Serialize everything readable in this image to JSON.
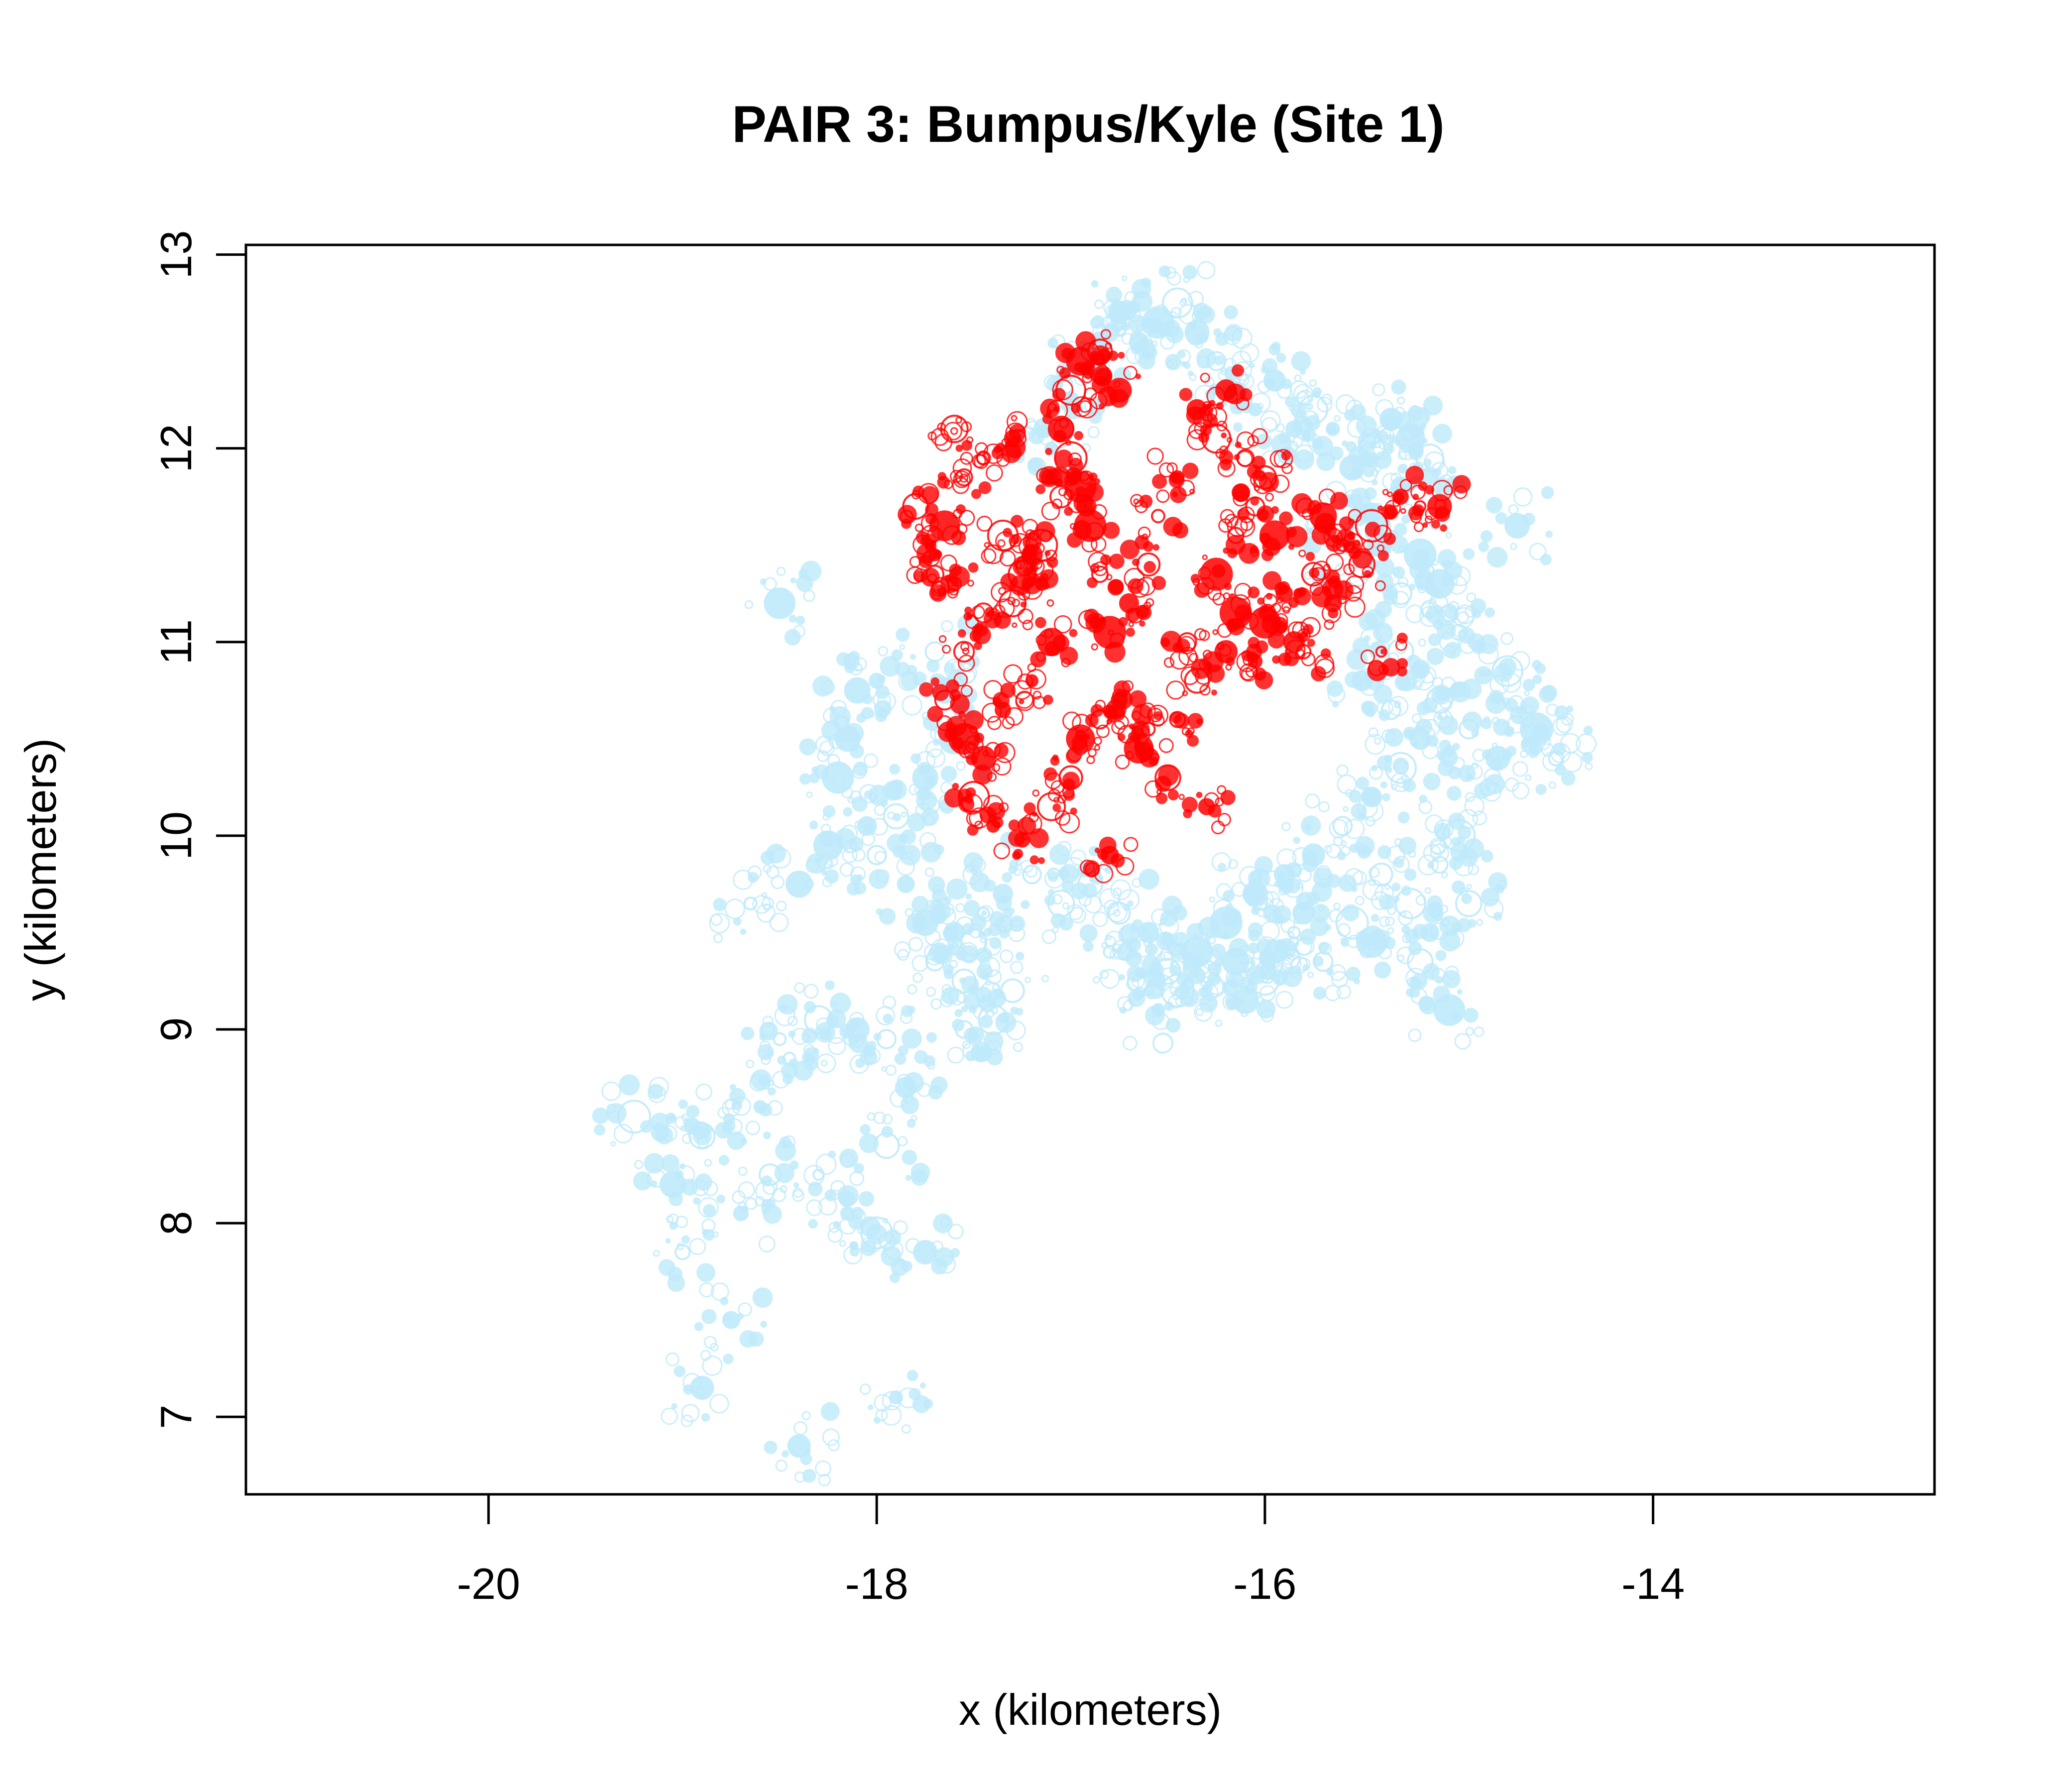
{
  "chart_data": {
    "type": "scatter",
    "title": "PAIR 3: Bumpus/Kyle (Site 1)",
    "xlabel": "x (kilometers)",
    "ylabel": "y (kilometers)",
    "xlim": [
      -21.25,
      -12.55
    ],
    "ylim": [
      6.6,
      13.05
    ],
    "xticks": [
      -20,
      -18,
      -16,
      -14
    ],
    "yticks": [
      7,
      8,
      9,
      10,
      11,
      12,
      13
    ],
    "grid": false,
    "legend": "none",
    "colors": {
      "blue": "#BFEAFB",
      "red": "#FF0000"
    },
    "series": [
      {
        "color": "blue",
        "points": [
          [
            -17.75,
            9.55
          ],
          [
            -17.6,
            9.5
          ],
          [
            -17.5,
            9.45
          ],
          [
            -17.7,
            9.35
          ],
          [
            -17.55,
            9.25
          ],
          [
            -17.45,
            9.6
          ],
          [
            -17.35,
            9.7
          ],
          [
            -17.2,
            9.8
          ],
          [
            -17.05,
            9.65
          ],
          [
            -16.9,
            9.75
          ],
          [
            -16.75,
            9.6
          ],
          [
            -16.6,
            9.5
          ],
          [
            -16.5,
            9.3
          ],
          [
            -16.35,
            9.4
          ],
          [
            -16.2,
            9.55
          ],
          [
            -16.05,
            9.7
          ],
          [
            -15.9,
            9.8
          ],
          [
            -15.75,
            9.9
          ],
          [
            -15.6,
            10.05
          ],
          [
            -15.45,
            10.2
          ],
          [
            -15.3,
            10.35
          ],
          [
            -15.2,
            10.5
          ],
          [
            -15.35,
            10.65
          ],
          [
            -15.5,
            10.8
          ],
          [
            -15.3,
            10.95
          ],
          [
            -15.1,
            10.7
          ],
          [
            -14.95,
            10.55
          ],
          [
            -14.8,
            10.4
          ],
          [
            -14.65,
            10.6
          ],
          [
            -14.5,
            10.4
          ],
          [
            -14.85,
            10.25
          ],
          [
            -15.0,
            10.0
          ],
          [
            -15.1,
            9.85
          ],
          [
            -15.25,
            9.65
          ],
          [
            -15.4,
            9.8
          ],
          [
            -15.55,
            9.55
          ],
          [
            -15.7,
            9.35
          ],
          [
            -15.85,
            9.5
          ],
          [
            -16.0,
            9.25
          ],
          [
            -16.15,
            9.35
          ],
          [
            -17.85,
            9.75
          ],
          [
            -18.0,
            9.9
          ],
          [
            -17.9,
            10.1
          ],
          [
            -17.75,
            10.3
          ],
          [
            -17.6,
            10.5
          ],
          [
            -17.65,
            10.75
          ],
          [
            -17.7,
            10.95
          ],
          [
            -18.1,
            10.75
          ],
          [
            -18.15,
            10.5
          ],
          [
            -18.2,
            10.3
          ],
          [
            -18.05,
            10.05
          ],
          [
            -18.25,
            9.95
          ],
          [
            -18.4,
            9.75
          ],
          [
            -17.4,
            9.05
          ],
          [
            -17.3,
            9.2
          ],
          [
            -17.55,
            9.0
          ],
          [
            -16.8,
            9.4
          ],
          [
            -16.65,
            9.25
          ],
          [
            -16.55,
            9.1
          ],
          [
            -16.45,
            9.2
          ],
          [
            -16.3,
            9.3
          ],
          [
            -16.1,
            9.15
          ],
          [
            -15.95,
            9.4
          ],
          [
            -15.8,
            9.6
          ],
          [
            -18.5,
            8.95
          ],
          [
            -18.45,
            8.85
          ],
          [
            -18.6,
            8.6
          ],
          [
            -18.3,
            8.25
          ],
          [
            -18.15,
            8.05
          ],
          [
            -18.0,
            7.95
          ],
          [
            -18.9,
            8.45
          ],
          [
            -19.05,
            8.2
          ],
          [
            -19.25,
            8.55
          ],
          [
            -18.95,
            8.5
          ],
          [
            -19.0,
            7.85
          ],
          [
            -18.75,
            7.5
          ],
          [
            -18.9,
            7.15
          ],
          [
            -17.9,
            7.1
          ],
          [
            -18.4,
            6.85
          ],
          [
            -17.75,
            7.85
          ],
          [
            -18.7,
            8.05
          ],
          [
            -18.55,
            8.25
          ],
          [
            -17.95,
            8.4
          ],
          [
            -17.85,
            8.7
          ],
          [
            -18.65,
            9.65
          ],
          [
            -18.3,
            9.05
          ],
          [
            -18.1,
            9.0
          ],
          [
            -17.95,
            8.95
          ],
          [
            -15.15,
            11.95
          ],
          [
            -15.25,
            12.05
          ],
          [
            -15.35,
            12.15
          ],
          [
            -15.45,
            12.0
          ],
          [
            -15.55,
            11.9
          ],
          [
            -15.65,
            12.1
          ],
          [
            -15.75,
            12.2
          ],
          [
            -15.3,
            11.8
          ],
          [
            -15.4,
            11.6
          ],
          [
            -15.2,
            11.45
          ],
          [
            -15.1,
            11.3
          ],
          [
            -15.05,
            11.15
          ],
          [
            -15.0,
            11.05
          ],
          [
            -15.3,
            11.25
          ],
          [
            -15.45,
            11.4
          ],
          [
            -15.6,
            11.5
          ],
          [
            -16.65,
            12.55
          ],
          [
            -16.55,
            12.65
          ],
          [
            -16.45,
            12.75
          ],
          [
            -16.35,
            12.6
          ],
          [
            -16.75,
            12.7
          ],
          [
            -16.85,
            12.55
          ],
          [
            -16.95,
            12.45
          ],
          [
            -16.25,
            12.45
          ],
          [
            -16.15,
            12.3
          ],
          [
            -16.05,
            12.2
          ],
          [
            -15.95,
            12.35
          ],
          [
            -15.85,
            12.1
          ],
          [
            -18.5,
            11.2
          ],
          [
            -18.0,
            10.8
          ],
          [
            -17.1,
            12.0
          ],
          [
            -17.0,
            12.25
          ],
          [
            -14.7,
            11.6
          ],
          [
            -14.75,
            10.85
          ],
          [
            -14.6,
            10.55
          ],
          [
            -15.15,
            9.5
          ],
          [
            -15.05,
            9.1
          ],
          [
            -14.95,
            9.65
          ],
          [
            -15.2,
            9.35
          ],
          [
            -15.45,
            9.45
          ]
        ]
      },
      {
        "color": "red",
        "points": [
          [
            -17.2,
            11.45
          ],
          [
            -17.25,
            11.35
          ],
          [
            -17.15,
            11.5
          ],
          [
            -17.3,
            11.2
          ],
          [
            -17.1,
            11.0
          ],
          [
            -17.2,
            10.8
          ],
          [
            -17.35,
            10.65
          ],
          [
            -17.45,
            10.4
          ],
          [
            -17.5,
            10.2
          ],
          [
            -17.4,
            10.05
          ],
          [
            -17.25,
            9.98
          ],
          [
            -17.1,
            10.15
          ],
          [
            -17.0,
            10.3
          ],
          [
            -16.95,
            10.5
          ],
          [
            -16.85,
            10.6
          ],
          [
            -16.75,
            10.7
          ],
          [
            -16.6,
            10.55
          ],
          [
            -16.45,
            10.6
          ],
          [
            -16.35,
            10.8
          ],
          [
            -16.2,
            10.95
          ],
          [
            -16.0,
            11.1
          ],
          [
            -15.9,
            11.25
          ],
          [
            -15.75,
            11.35
          ],
          [
            -15.6,
            11.5
          ],
          [
            -15.45,
            11.6
          ],
          [
            -15.3,
            11.75
          ],
          [
            -15.2,
            11.7
          ],
          [
            -15.5,
            11.4
          ],
          [
            -15.65,
            11.2
          ],
          [
            -15.85,
            11.0
          ],
          [
            -16.05,
            10.9
          ],
          [
            -16.15,
            11.15
          ],
          [
            -16.25,
            11.35
          ],
          [
            -16.15,
            11.55
          ],
          [
            -16.05,
            11.7
          ],
          [
            -16.0,
            11.85
          ],
          [
            -16.1,
            11.95
          ],
          [
            -16.25,
            12.05
          ],
          [
            -16.35,
            12.2
          ],
          [
            -16.2,
            12.3
          ],
          [
            -16.45,
            11.85
          ],
          [
            -16.55,
            11.65
          ],
          [
            -16.6,
            11.4
          ],
          [
            -16.7,
            11.2
          ],
          [
            -16.85,
            11.35
          ],
          [
            -16.9,
            11.6
          ],
          [
            -16.95,
            11.8
          ],
          [
            -17.0,
            11.95
          ],
          [
            -17.05,
            12.1
          ],
          [
            -17.0,
            12.3
          ],
          [
            -16.95,
            12.45
          ],
          [
            -16.85,
            12.5
          ],
          [
            -16.75,
            12.3
          ],
          [
            -17.6,
            12.1
          ],
          [
            -17.45,
            11.95
          ],
          [
            -17.3,
            12.05
          ],
          [
            -17.55,
            11.85
          ],
          [
            -17.65,
            11.6
          ],
          [
            -17.7,
            11.45
          ],
          [
            -17.6,
            11.3
          ],
          [
            -17.45,
            11.15
          ],
          [
            -17.55,
            10.95
          ],
          [
            -17.65,
            10.7
          ],
          [
            -17.55,
            10.5
          ],
          [
            -16.3,
            10.15
          ],
          [
            -16.5,
            10.3
          ],
          [
            -16.65,
            10.45
          ],
          [
            -16.8,
            9.9
          ],
          [
            -15.4,
            10.95
          ],
          [
            -15.1,
            11.7
          ],
          [
            -15.8,
            10.95
          ],
          [
            -15.95,
            11.55
          ],
          [
            -17.8,
            11.7
          ],
          [
            -17.7,
            11.35
          ],
          [
            -17.35,
            11.55
          ],
          [
            -17.15,
            11.3
          ],
          [
            -17.05,
            11.75
          ],
          [
            -16.8,
            11.05
          ],
          [
            -16.4,
            11.0
          ],
          [
            -15.7,
            11.65
          ]
        ]
      }
    ]
  }
}
